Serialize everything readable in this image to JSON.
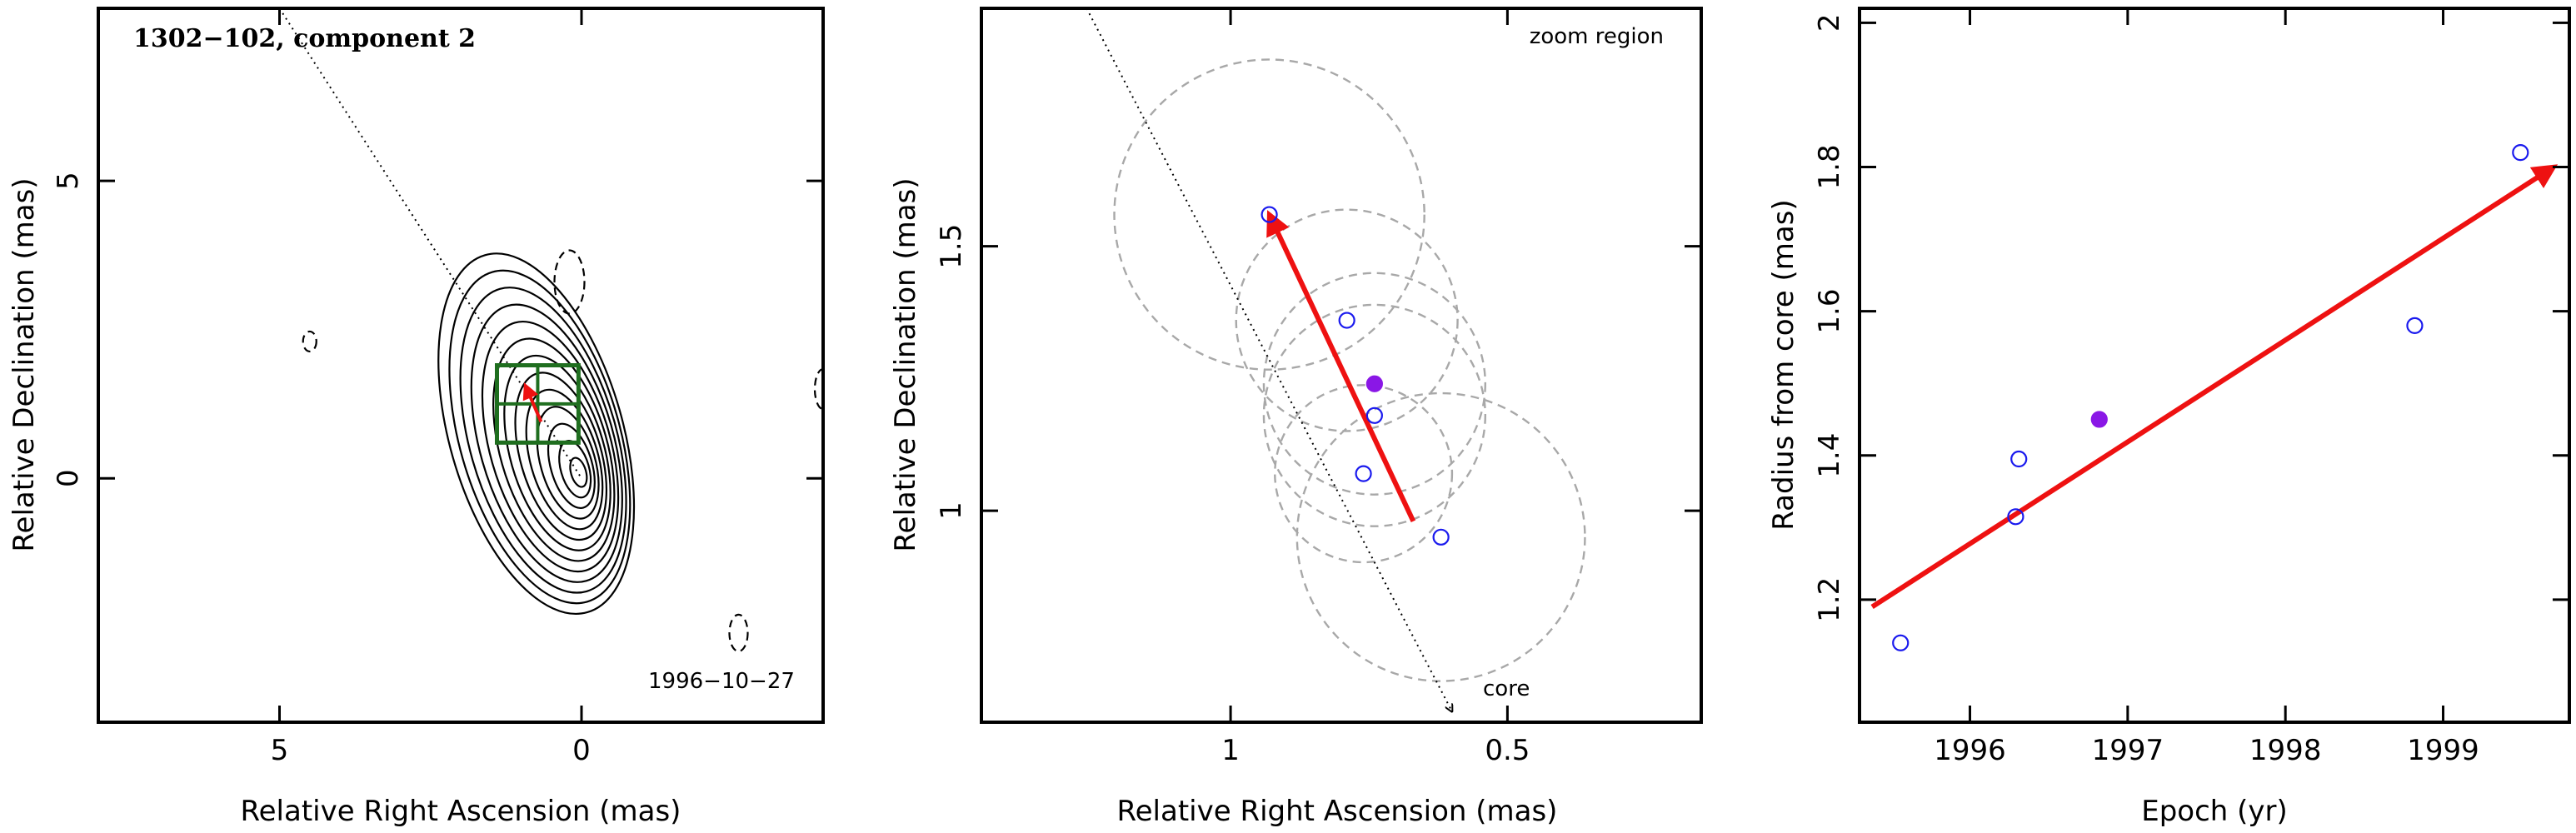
{
  "colors": {
    "red": "#ee1111",
    "blue": "#1a1aee",
    "purple": "#8a17e6",
    "green": "#1f6e1f",
    "grey": "#a8a8a8"
  },
  "chart_data": [
    {
      "type": "contour_map",
      "title": "1302−102, component 2",
      "epoch_label": "1996−10−27",
      "xlabel": "Relative Right Ascension (mas)",
      "ylabel": "Relative Declination (mas)",
      "xlim": [
        8,
        -4
      ],
      "ylim": [
        -4.1,
        7.9
      ],
      "xticks": [
        5,
        0
      ],
      "xticklabels": [
        "5",
        "0"
      ],
      "yticks": [
        5,
        0
      ],
      "yticklabels": [
        "5",
        "0"
      ],
      "core_position": [
        0,
        0
      ],
      "zoom_box": {
        "ra": [
          1.4,
          0.05
        ],
        "dec": [
          0.6,
          1.9
        ]
      },
      "jet_line": {
        "from": [
          5.0,
          7.9
        ],
        "to": [
          0.0,
          0.0
        ]
      },
      "motion_arrow": {
        "from": [
          0.67,
          0.95
        ],
        "to": [
          0.93,
          1.56
        ]
      }
    },
    {
      "type": "scatter",
      "label": "zoom region",
      "core_label": "core",
      "xlabel": "Relative Right Ascension (mas)",
      "ylabel": "Relative Declination (mas)",
      "xlim": [
        1.45,
        0.15
      ],
      "ylim": [
        0.6,
        1.95
      ],
      "xticks": [
        1,
        0.5
      ],
      "xticklabels": [
        "1",
        "0.5"
      ],
      "yticks": [
        1,
        1.5
      ],
      "yticklabels": [
        "1",
        "1.5"
      ],
      "points": [
        {
          "ra": 0.93,
          "dec": 1.56,
          "r": 0.28,
          "filled": false
        },
        {
          "ra": 0.79,
          "dec": 1.36,
          "r": 0.2,
          "filled": false
        },
        {
          "ra": 0.74,
          "dec": 1.24,
          "r": 0.2,
          "filled": true
        },
        {
          "ra": 0.74,
          "dec": 1.18,
          "r": 0.2,
          "filled": false
        },
        {
          "ra": 0.76,
          "dec": 1.07,
          "r": 0.16,
          "filled": false
        },
        {
          "ra": 0.62,
          "dec": 0.95,
          "r": 0.26,
          "filled": false
        }
      ],
      "motion_arrow": {
        "from": [
          0.67,
          0.98
        ],
        "to": [
          0.93,
          1.56
        ]
      },
      "jet_line": {
        "from": [
          1.26,
          1.95
        ],
        "to": [
          0.6,
          0.62
        ]
      }
    },
    {
      "type": "scatter",
      "xlabel": "Epoch (yr)",
      "ylabel": "Radius from core (mas)",
      "xlim": [
        1995.3,
        1999.8
      ],
      "ylim": [
        1.03,
        2.02
      ],
      "xticks": [
        1996,
        1997,
        1998,
        1999
      ],
      "xticklabels": [
        "1996",
        "1997",
        "1998",
        "1999"
      ],
      "yticks": [
        1.2,
        1.4,
        1.6,
        1.8,
        2.0
      ],
      "yticklabels": [
        "1.2",
        "1.4",
        "1.6",
        "1.8",
        "2"
      ],
      "points": [
        {
          "x": 1995.56,
          "y": 1.14,
          "filled": false
        },
        {
          "x": 1996.29,
          "y": 1.315,
          "filled": false
        },
        {
          "x": 1996.31,
          "y": 1.395,
          "filled": false
        },
        {
          "x": 1996.82,
          "y": 1.45,
          "filled": true
        },
        {
          "x": 1998.82,
          "y": 1.58,
          "filled": false
        },
        {
          "x": 1999.49,
          "y": 1.82,
          "filled": false
        }
      ],
      "fit_arrow": {
        "from": [
          1995.38,
          1.19
        ],
        "to": [
          1999.7,
          1.8
        ]
      }
    }
  ]
}
